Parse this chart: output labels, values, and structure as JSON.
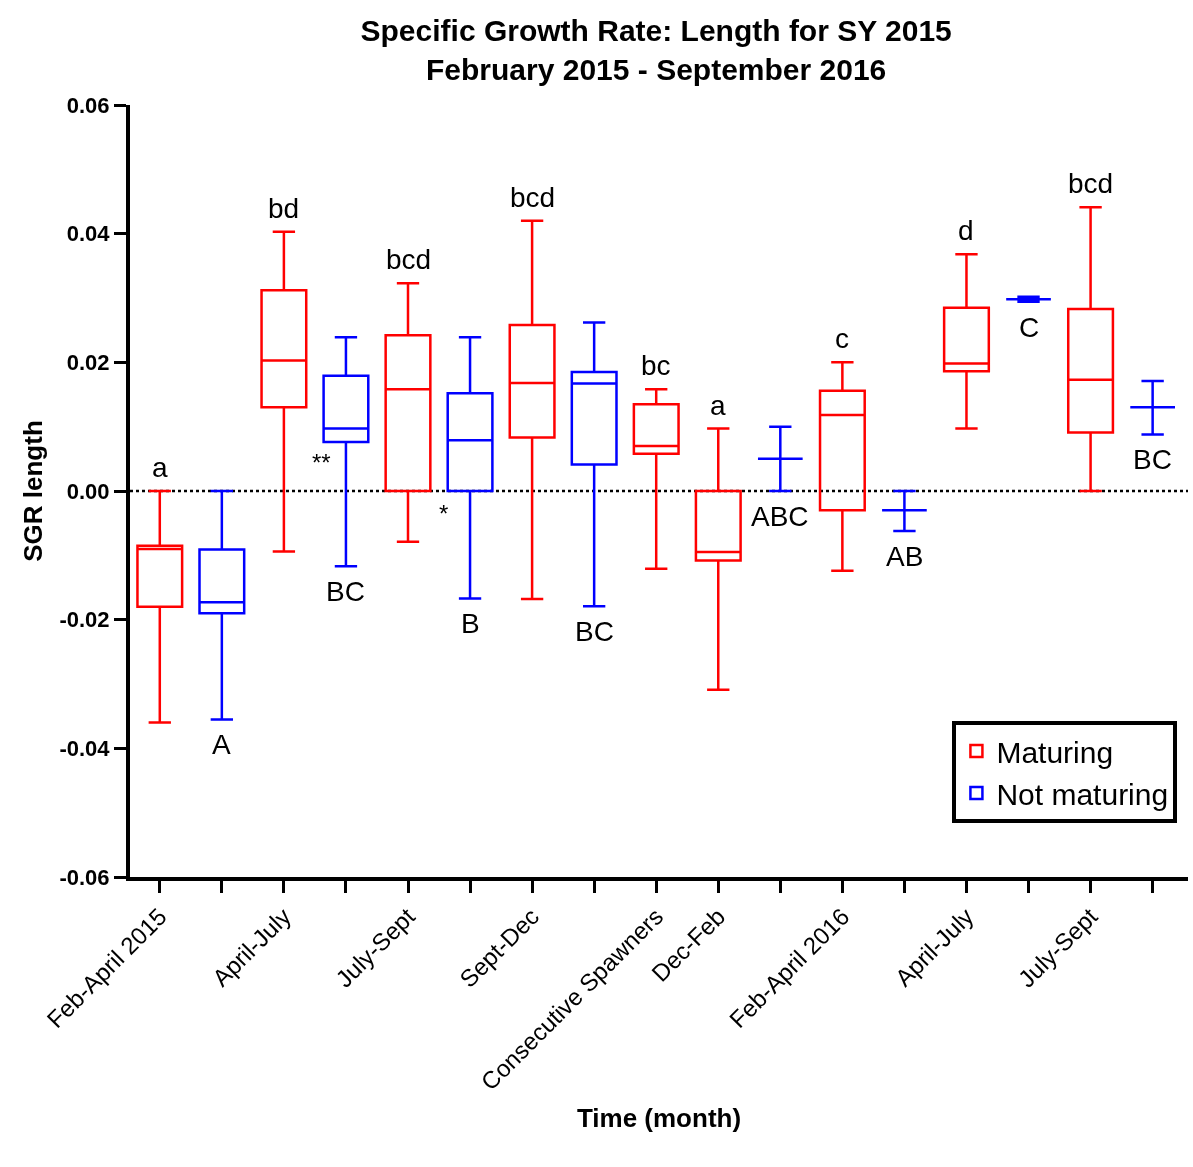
{
  "chart_data": {
    "type": "box",
    "title": "Specific Growth Rate: Length for SY 2015",
    "subtitle": "February 2015 - September 2016",
    "xlabel": "Time (month)",
    "ylabel": "SGR length",
    "categories": [
      "Feb-April 2015",
      null,
      "April-July",
      null,
      "July-Sept",
      null,
      "Sept-Dec",
      null,
      "Consecutive Spawners",
      "Dec-Feb",
      null,
      "Feb-April 2016",
      null,
      "April-July",
      null,
      "July-Sept",
      null
    ],
    "ylim": [
      -0.06,
      0.06
    ],
    "yticks": [
      {
        "value": -0.06,
        "label": "-0.06"
      },
      {
        "value": -0.04,
        "label": "-0.04"
      },
      {
        "value": -0.02,
        "label": "-0.02"
      },
      {
        "value": 0,
        "label": "0.00"
      },
      {
        "value": 0.02,
        "label": "0.02"
      },
      {
        "value": 0.04,
        "label": "0.04"
      },
      {
        "value": 0.06,
        "label": "0.06"
      }
    ],
    "grid": false,
    "legend": "bottom right",
    "series": [
      {
        "name": "Maturing",
        "color": "#ff0000",
        "boxes": [
          {
            "low": -0.036,
            "q1": -0.018,
            "median": -0.009,
            "q3": -0.0085,
            "high": 0
          },
          null,
          {
            "low": -0.0094,
            "q1": 0.013,
            "median": 0.0203,
            "q3": 0.0312,
            "high": 0.0403
          },
          null,
          {
            "low": -0.0079,
            "q1": 0,
            "median": 0.0158,
            "q3": 0.0242,
            "high": 0.0323
          },
          null,
          {
            "low": -0.0168,
            "q1": 0.0083,
            "median": 0.0168,
            "q3": 0.0258,
            "high": 0.042
          },
          null,
          {
            "low": -0.0121,
            "q1": 0.0058,
            "median": 0.007,
            "q3": 0.0135,
            "high": 0.0158
          },
          {
            "low": -0.0309,
            "q1": -0.0108,
            "median": -0.0095,
            "q3": 0,
            "high": 0.0097
          },
          null,
          {
            "low": -0.0124,
            "q1": -0.003,
            "median": 0.0118,
            "q3": 0.0156,
            "high": 0.02
          },
          null,
          {
            "low": 0.0097,
            "q1": 0.0186,
            "median": 0.0198,
            "q3": 0.0285,
            "high": 0.0368
          },
          null,
          {
            "low": 0,
            "q1": 0.0091,
            "median": 0.0173,
            "q3": 0.0283,
            "high": 0.0441
          },
          null
        ],
        "value_labels": [
          "a",
          null,
          "bd",
          null,
          "bcd",
          null,
          "bcd",
          null,
          "bc",
          "a",
          null,
          "c",
          null,
          "d",
          null,
          "bcd",
          null
        ]
      },
      {
        "name": "Not maturing",
        "color": "#0000ff",
        "boxes": [
          null,
          {
            "low": -0.0355,
            "q1": -0.019,
            "median": -0.0173,
            "q3": -0.0091,
            "high": 0
          },
          null,
          {
            "low": -0.0117,
            "q1": 0.0076,
            "median": 0.0097,
            "q3": 0.0179,
            "high": 0.0239
          },
          null,
          {
            "low": -0.0167,
            "q1": 0,
            "median": 0.0079,
            "q3": 0.0152,
            "high": 0.0239
          },
          null,
          {
            "low": -0.0179,
            "q1": 0.0041,
            "median": 0.0167,
            "q3": 0.0185,
            "high": 0.0262
          },
          null,
          null,
          {
            "low": 0,
            "q1": 0.005,
            "median": 0.005,
            "q3": 0.005,
            "high": 0.01
          },
          null,
          {
            "low": -0.0062,
            "q1": -0.003,
            "median": -0.003,
            "q3": -0.003,
            "high": 0
          },
          null,
          {
            "low": 0.0294,
            "q1": 0.0298,
            "median": 0.0298,
            "q3": 0.0298,
            "high": 0.0302
          },
          null,
          {
            "low": 0.0088,
            "q1": 0.013,
            "median": 0.013,
            "q3": 0.013,
            "high": 0.0171
          }
        ],
        "value_labels": [
          null,
          "A",
          null,
          "BC",
          null,
          "B",
          null,
          "BC",
          null,
          null,
          "ABC",
          null,
          "AB",
          null,
          "C",
          null,
          "BC"
        ]
      }
    ],
    "ref_lines": [
      {
        "axis": "y",
        "value": 0,
        "color": "#000000",
        "line_style": "dotted"
      }
    ],
    "annotations": [
      "**",
      "*"
    ]
  }
}
